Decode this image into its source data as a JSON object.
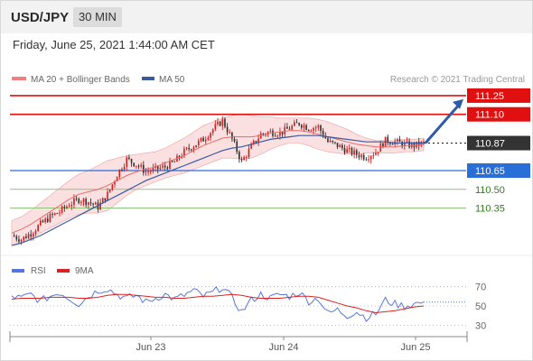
{
  "header": {
    "pair": "USD/JPY",
    "timeframe": "30 MIN",
    "datetime": "Friday, June 25, 2021 1:44:00 AM CET"
  },
  "colors": {
    "candle_up": "#cc2222",
    "candle_down": "#333333",
    "ma20": "#ea6a6a",
    "band_fill": "#f6cccc",
    "ma50": "#3a5aa0",
    "resistance": "#e01010",
    "support_blue": "#2a6ed8",
    "support_green": "#8cc47a",
    "green_text": "#2e7d1a",
    "current": "#222222",
    "arrow": "#2e5aa8",
    "rsi": "#5577dd",
    "rsi_ma": "#dd2222"
  },
  "chart_data": [
    {
      "type": "candlestick",
      "legend": [
        {
          "name": "MA 20 + Bollinger Bands",
          "color": "#f08080"
        },
        {
          "name": "MA 50",
          "color": "#3a5aa0"
        }
      ],
      "credit": "Research © 2021 Trading Central",
      "x_ticks": [
        "Jun 23",
        "Jun 24",
        "Jun 25"
      ],
      "ylim": [
        110.0,
        111.3
      ],
      "levels": [
        {
          "value": 111.25,
          "label": "111.25",
          "kind": "resistance"
        },
        {
          "value": 111.1,
          "label": "111.10",
          "kind": "resistance"
        },
        {
          "value": 110.87,
          "label": "110.87",
          "kind": "current"
        },
        {
          "value": 110.65,
          "label": "110.65",
          "kind": "support_blue"
        },
        {
          "value": 110.5,
          "label": "110.50",
          "kind": "support_green"
        },
        {
          "value": 110.35,
          "label": "110.35",
          "kind": "support_green"
        }
      ],
      "close_path": [
        110.13,
        110.1,
        110.15,
        110.22,
        110.28,
        110.32,
        110.38,
        110.42,
        110.4,
        110.36,
        110.46,
        110.62,
        110.74,
        110.7,
        110.64,
        110.66,
        110.68,
        110.72,
        110.8,
        110.85,
        110.9,
        110.98,
        111.05,
        110.9,
        110.72,
        110.84,
        110.94,
        110.96,
        110.95,
        110.99,
        111.03,
        110.99,
        111.0,
        110.88,
        110.85,
        110.81,
        110.78,
        110.76,
        110.8,
        110.89,
        110.88,
        110.86,
        110.85,
        110.87
      ],
      "ma20": [
        110.15,
        110.18,
        110.22,
        110.27,
        110.32,
        110.37,
        110.42,
        110.46,
        110.48,
        110.5,
        110.53,
        110.57,
        110.61,
        110.64,
        110.66,
        110.68,
        110.71,
        110.74,
        110.77,
        110.81,
        110.85,
        110.88,
        110.91,
        110.92,
        110.92,
        110.92,
        110.93,
        110.95,
        110.96,
        110.97,
        110.97,
        110.96,
        110.94,
        110.92,
        110.9,
        110.88,
        110.86,
        110.85,
        110.84,
        110.84,
        110.84,
        110.85,
        110.85,
        110.86
      ],
      "bb_width": [
        0.1,
        0.1,
        0.11,
        0.12,
        0.13,
        0.14,
        0.15,
        0.16,
        0.17,
        0.19,
        0.2,
        0.18,
        0.16,
        0.14,
        0.13,
        0.12,
        0.12,
        0.13,
        0.14,
        0.15,
        0.16,
        0.16,
        0.16,
        0.17,
        0.18,
        0.17,
        0.15,
        0.13,
        0.11,
        0.1,
        0.1,
        0.11,
        0.12,
        0.12,
        0.11,
        0.1,
        0.08,
        0.06,
        0.05,
        0.05,
        0.05,
        0.05,
        0.05,
        0.05
      ],
      "ma50": [
        110.05,
        110.07,
        110.1,
        110.13,
        110.17,
        110.21,
        110.25,
        110.29,
        110.33,
        110.37,
        110.41,
        110.45,
        110.49,
        110.53,
        110.57,
        110.6,
        110.63,
        110.66,
        110.69,
        110.72,
        110.75,
        110.78,
        110.81,
        110.83,
        110.84,
        110.86,
        110.88,
        110.9,
        110.91,
        110.92,
        110.93,
        110.93,
        110.93,
        110.92,
        110.91,
        110.9,
        110.89,
        110.88,
        110.88,
        110.88,
        110.87,
        110.87,
        110.87,
        110.87
      ],
      "projection": {
        "from": 110.87,
        "to": 111.25
      }
    },
    {
      "type": "line",
      "legend": [
        {
          "name": "RSI",
          "color": "#5577dd"
        },
        {
          "name": "9MA",
          "color": "#dd2222"
        }
      ],
      "ylim": [
        20,
        80
      ],
      "y_ticks": [
        70,
        50,
        30
      ],
      "rsi": [
        60,
        58,
        62,
        55,
        60,
        64,
        58,
        52,
        60,
        66,
        68,
        62,
        58,
        61,
        54,
        58,
        62,
        57,
        61,
        66,
        60,
        64,
        70,
        58,
        44,
        56,
        62,
        58,
        62,
        60,
        64,
        55,
        58,
        42,
        46,
        40,
        44,
        38,
        42,
        56,
        52,
        50,
        52,
        54
      ],
      "rsi_ma": [
        57,
        58,
        58,
        58,
        59,
        59,
        59,
        58,
        58,
        59,
        61,
        62,
        62,
        61,
        60,
        59,
        59,
        58,
        58,
        59,
        60,
        60,
        61,
        62,
        61,
        59,
        58,
        58,
        58,
        59,
        60,
        60,
        59,
        56,
        53,
        50,
        48,
        45,
        43,
        44,
        45,
        47,
        49,
        50
      ]
    }
  ]
}
